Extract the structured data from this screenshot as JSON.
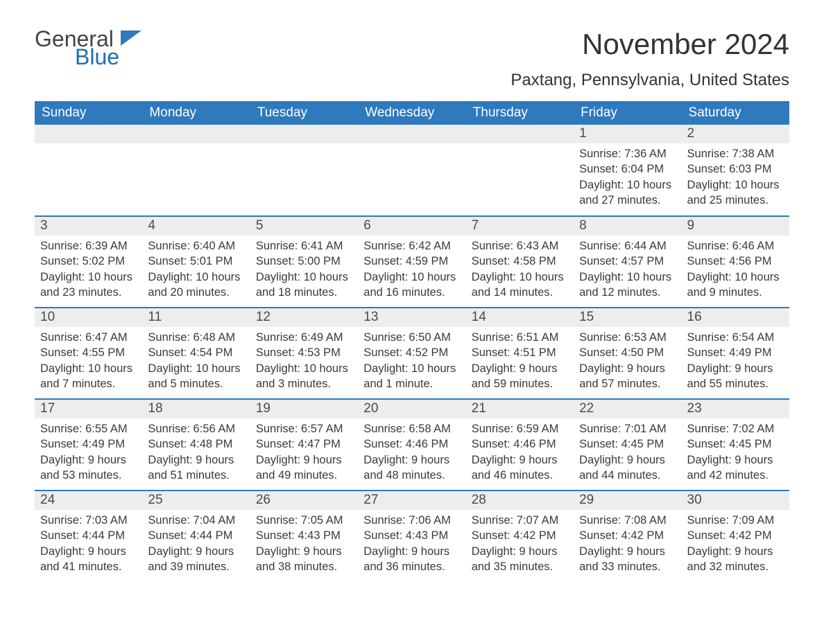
{
  "brand": {
    "general": "General",
    "blue": "Blue",
    "accent_color": "#2f79bd"
  },
  "title": "November 2024",
  "location": "Paxtang, Pennsylvania, United States",
  "day_headers": [
    "Sunday",
    "Monday",
    "Tuesday",
    "Wednesday",
    "Thursday",
    "Friday",
    "Saturday"
  ],
  "styling": {
    "header_bg": "#2f79bd",
    "header_fg": "#ffffff",
    "daynum_bg": "#ededed",
    "week_border": "#2f79bd",
    "body_bg": "#ffffff",
    "text_color": "#333333",
    "month_title_fontsize": 42,
    "location_fontsize": 24,
    "header_fontsize": 19,
    "daynum_fontsize": 19,
    "daydata_fontsize": 16.5
  },
  "weeks": [
    [
      null,
      null,
      null,
      null,
      null,
      {
        "n": "1",
        "sunrise": "Sunrise: 7:36 AM",
        "sunset": "Sunset: 6:04 PM",
        "dl1": "Daylight: 10 hours",
        "dl2": "and 27 minutes."
      },
      {
        "n": "2",
        "sunrise": "Sunrise: 7:38 AM",
        "sunset": "Sunset: 6:03 PM",
        "dl1": "Daylight: 10 hours",
        "dl2": "and 25 minutes."
      }
    ],
    [
      {
        "n": "3",
        "sunrise": "Sunrise: 6:39 AM",
        "sunset": "Sunset: 5:02 PM",
        "dl1": "Daylight: 10 hours",
        "dl2": "and 23 minutes."
      },
      {
        "n": "4",
        "sunrise": "Sunrise: 6:40 AM",
        "sunset": "Sunset: 5:01 PM",
        "dl1": "Daylight: 10 hours",
        "dl2": "and 20 minutes."
      },
      {
        "n": "5",
        "sunrise": "Sunrise: 6:41 AM",
        "sunset": "Sunset: 5:00 PM",
        "dl1": "Daylight: 10 hours",
        "dl2": "and 18 minutes."
      },
      {
        "n": "6",
        "sunrise": "Sunrise: 6:42 AM",
        "sunset": "Sunset: 4:59 PM",
        "dl1": "Daylight: 10 hours",
        "dl2": "and 16 minutes."
      },
      {
        "n": "7",
        "sunrise": "Sunrise: 6:43 AM",
        "sunset": "Sunset: 4:58 PM",
        "dl1": "Daylight: 10 hours",
        "dl2": "and 14 minutes."
      },
      {
        "n": "8",
        "sunrise": "Sunrise: 6:44 AM",
        "sunset": "Sunset: 4:57 PM",
        "dl1": "Daylight: 10 hours",
        "dl2": "and 12 minutes."
      },
      {
        "n": "9",
        "sunrise": "Sunrise: 6:46 AM",
        "sunset": "Sunset: 4:56 PM",
        "dl1": "Daylight: 10 hours",
        "dl2": "and 9 minutes."
      }
    ],
    [
      {
        "n": "10",
        "sunrise": "Sunrise: 6:47 AM",
        "sunset": "Sunset: 4:55 PM",
        "dl1": "Daylight: 10 hours",
        "dl2": "and 7 minutes."
      },
      {
        "n": "11",
        "sunrise": "Sunrise: 6:48 AM",
        "sunset": "Sunset: 4:54 PM",
        "dl1": "Daylight: 10 hours",
        "dl2": "and 5 minutes."
      },
      {
        "n": "12",
        "sunrise": "Sunrise: 6:49 AM",
        "sunset": "Sunset: 4:53 PM",
        "dl1": "Daylight: 10 hours",
        "dl2": "and 3 minutes."
      },
      {
        "n": "13",
        "sunrise": "Sunrise: 6:50 AM",
        "sunset": "Sunset: 4:52 PM",
        "dl1": "Daylight: 10 hours",
        "dl2": "and 1 minute."
      },
      {
        "n": "14",
        "sunrise": "Sunrise: 6:51 AM",
        "sunset": "Sunset: 4:51 PM",
        "dl1": "Daylight: 9 hours",
        "dl2": "and 59 minutes."
      },
      {
        "n": "15",
        "sunrise": "Sunrise: 6:53 AM",
        "sunset": "Sunset: 4:50 PM",
        "dl1": "Daylight: 9 hours",
        "dl2": "and 57 minutes."
      },
      {
        "n": "16",
        "sunrise": "Sunrise: 6:54 AM",
        "sunset": "Sunset: 4:49 PM",
        "dl1": "Daylight: 9 hours",
        "dl2": "and 55 minutes."
      }
    ],
    [
      {
        "n": "17",
        "sunrise": "Sunrise: 6:55 AM",
        "sunset": "Sunset: 4:49 PM",
        "dl1": "Daylight: 9 hours",
        "dl2": "and 53 minutes."
      },
      {
        "n": "18",
        "sunrise": "Sunrise: 6:56 AM",
        "sunset": "Sunset: 4:48 PM",
        "dl1": "Daylight: 9 hours",
        "dl2": "and 51 minutes."
      },
      {
        "n": "19",
        "sunrise": "Sunrise: 6:57 AM",
        "sunset": "Sunset: 4:47 PM",
        "dl1": "Daylight: 9 hours",
        "dl2": "and 49 minutes."
      },
      {
        "n": "20",
        "sunrise": "Sunrise: 6:58 AM",
        "sunset": "Sunset: 4:46 PM",
        "dl1": "Daylight: 9 hours",
        "dl2": "and 48 minutes."
      },
      {
        "n": "21",
        "sunrise": "Sunrise: 6:59 AM",
        "sunset": "Sunset: 4:46 PM",
        "dl1": "Daylight: 9 hours",
        "dl2": "and 46 minutes."
      },
      {
        "n": "22",
        "sunrise": "Sunrise: 7:01 AM",
        "sunset": "Sunset: 4:45 PM",
        "dl1": "Daylight: 9 hours",
        "dl2": "and 44 minutes."
      },
      {
        "n": "23",
        "sunrise": "Sunrise: 7:02 AM",
        "sunset": "Sunset: 4:45 PM",
        "dl1": "Daylight: 9 hours",
        "dl2": "and 42 minutes."
      }
    ],
    [
      {
        "n": "24",
        "sunrise": "Sunrise: 7:03 AM",
        "sunset": "Sunset: 4:44 PM",
        "dl1": "Daylight: 9 hours",
        "dl2": "and 41 minutes."
      },
      {
        "n": "25",
        "sunrise": "Sunrise: 7:04 AM",
        "sunset": "Sunset: 4:44 PM",
        "dl1": "Daylight: 9 hours",
        "dl2": "and 39 minutes."
      },
      {
        "n": "26",
        "sunrise": "Sunrise: 7:05 AM",
        "sunset": "Sunset: 4:43 PM",
        "dl1": "Daylight: 9 hours",
        "dl2": "and 38 minutes."
      },
      {
        "n": "27",
        "sunrise": "Sunrise: 7:06 AM",
        "sunset": "Sunset: 4:43 PM",
        "dl1": "Daylight: 9 hours",
        "dl2": "and 36 minutes."
      },
      {
        "n": "28",
        "sunrise": "Sunrise: 7:07 AM",
        "sunset": "Sunset: 4:42 PM",
        "dl1": "Daylight: 9 hours",
        "dl2": "and 35 minutes."
      },
      {
        "n": "29",
        "sunrise": "Sunrise: 7:08 AM",
        "sunset": "Sunset: 4:42 PM",
        "dl1": "Daylight: 9 hours",
        "dl2": "and 33 minutes."
      },
      {
        "n": "30",
        "sunrise": "Sunrise: 7:09 AM",
        "sunset": "Sunset: 4:42 PM",
        "dl1": "Daylight: 9 hours",
        "dl2": "and 32 minutes."
      }
    ]
  ]
}
